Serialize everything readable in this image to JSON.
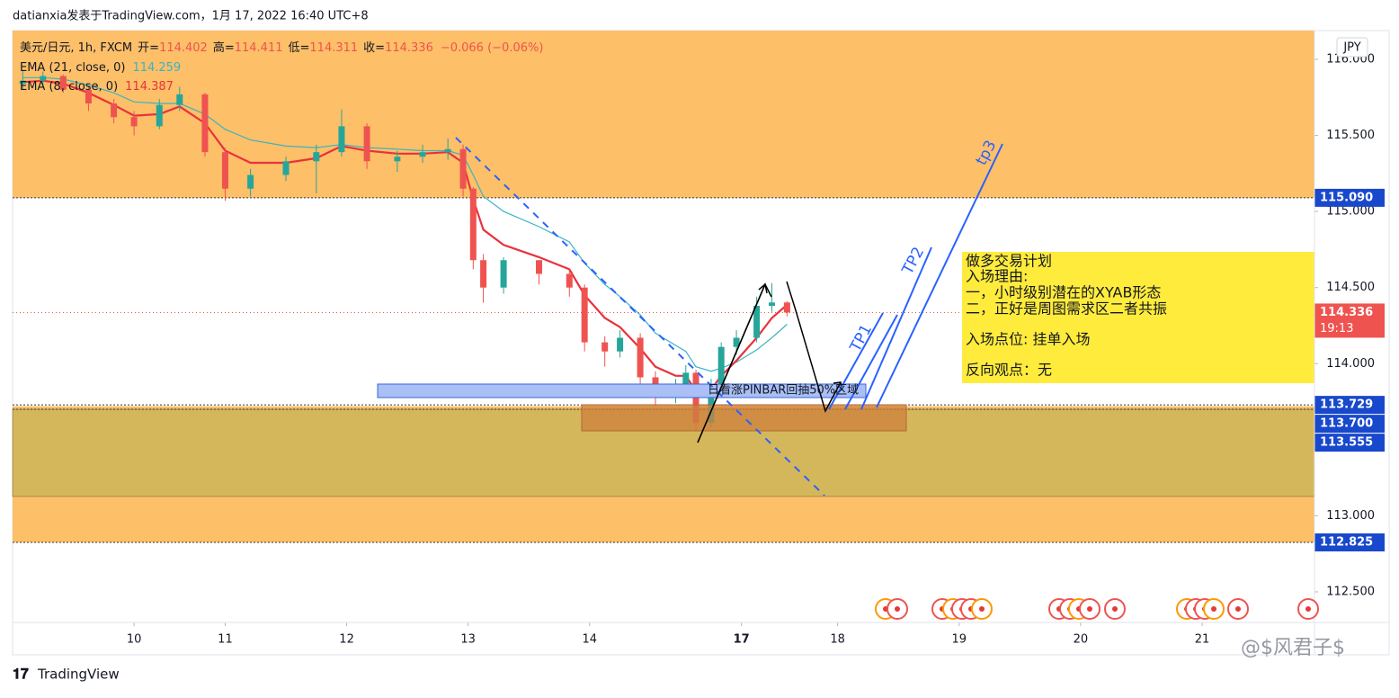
{
  "header": "datianxia发表于TradingView.com，1月 17, 2022 16:40 UTC+8",
  "chart_data": {
    "type": "candlestick",
    "symbol": "美元/日元, 1h, FXCM",
    "ohlc_labels": [
      "开=",
      "高=",
      "低=",
      "收="
    ],
    "change": "−0.066 (−0.06%)",
    "currency": "JPY",
    "countdown": "19:13",
    "xlim": [
      0,
      257.2
    ],
    "xticks": [
      {
        "value": 24,
        "label": "10"
      },
      {
        "value": 42,
        "label": "11"
      },
      {
        "value": 66,
        "label": "12"
      },
      {
        "value": 90,
        "label": "13"
      },
      {
        "value": 114,
        "label": "14"
      },
      {
        "value": 144,
        "label": "17"
      },
      {
        "value": 163,
        "label": "18"
      },
      {
        "value": 187,
        "label": "19"
      },
      {
        "value": 211,
        "label": "20"
      },
      {
        "value": 235,
        "label": "21"
      }
    ],
    "ylim": [
      112.299,
      116.189
    ],
    "yticks": [
      {
        "value": 116,
        "label": "116.000"
      },
      {
        "value": 115.5,
        "label": "115.500"
      },
      {
        "value": 115,
        "label": "115.000"
      },
      {
        "value": 114.5,
        "label": "114.500"
      },
      {
        "value": 114,
        "label": "114.000"
      },
      {
        "value": 113,
        "label": "113.000"
      },
      {
        "value": 112.5,
        "label": "112.500"
      }
    ],
    "grid": false,
    "up_color": "#26a69a",
    "down_color": "#ef5350",
    "candles": {
      "x": [
        2,
        6,
        10,
        15,
        20,
        24,
        29,
        33,
        38,
        42,
        47,
        54,
        60,
        65,
        70,
        76,
        81,
        86,
        89,
        91,
        93,
        97,
        104,
        110,
        113,
        117,
        120,
        124,
        127,
        131,
        133,
        135,
        138,
        140,
        143,
        147,
        150,
        153
      ],
      "open": [
        115.84,
        115.86,
        115.89,
        115.8,
        115.71,
        115.62,
        115.56,
        115.7,
        115.77,
        115.39,
        115.15,
        115.24,
        115.33,
        115.39,
        115.56,
        115.33,
        115.36,
        115.39,
        115.41,
        115.15,
        114.68,
        114.5,
        114.68,
        114.59,
        114.5,
        114.14,
        114.08,
        114.17,
        113.91,
        113.79,
        113.85,
        113.94,
        113.61,
        113.85,
        114.11,
        114.17,
        114.38,
        114.402
      ],
      "high": [
        115.93,
        115.92,
        115.9,
        115.82,
        115.74,
        115.66,
        115.74,
        115.82,
        115.78,
        115.42,
        115.28,
        115.36,
        115.44,
        115.67,
        115.58,
        115.4,
        115.44,
        115.48,
        115.44,
        115.16,
        114.72,
        114.7,
        114.68,
        114.62,
        114.52,
        114.18,
        114.22,
        114.2,
        113.95,
        113.9,
        113.99,
        113.96,
        113.9,
        114.14,
        114.22,
        114.44,
        114.53,
        114.411
      ],
      "low": [
        115.8,
        115.82,
        115.78,
        115.66,
        115.58,
        115.5,
        115.54,
        115.66,
        115.36,
        115.07,
        115.1,
        115.2,
        115.12,
        115.36,
        115.28,
        115.26,
        115.32,
        115.34,
        115.1,
        114.62,
        114.4,
        114.46,
        114.52,
        114.44,
        114.08,
        113.98,
        114.04,
        113.86,
        113.72,
        113.74,
        113.8,
        113.555,
        113.58,
        113.82,
        114.06,
        114.14,
        114.34,
        114.311
      ],
      "close": [
        115.86,
        115.89,
        115.8,
        115.71,
        115.62,
        115.56,
        115.7,
        115.77,
        115.39,
        115.15,
        115.24,
        115.33,
        115.39,
        115.56,
        115.33,
        115.36,
        115.39,
        115.41,
        115.15,
        114.68,
        114.5,
        114.68,
        114.59,
        114.5,
        114.14,
        114.08,
        114.17,
        113.91,
        113.79,
        113.85,
        113.94,
        113.61,
        113.85,
        114.11,
        114.17,
        114.38,
        114.402,
        114.336
      ]
    },
    "ema": [
      {
        "name": "EMA (21, close, 0)",
        "color": "#3bb3c3",
        "values": [
          115.88,
          115.88,
          115.87,
          115.83,
          115.78,
          115.72,
          115.71,
          115.71,
          115.64,
          115.54,
          115.47,
          115.43,
          115.42,
          115.44,
          115.42,
          115.41,
          115.4,
          115.4,
          115.37,
          115.24,
          115.1,
          115,
          114.9,
          114.8,
          114.66,
          114.52,
          114.44,
          114.32,
          114.2,
          114.12,
          114.08,
          113.98,
          113.95,
          113.97,
          114.01,
          114.09,
          114.17,
          114.259
        ]
      },
      {
        "name": "EMA (8, close, 0)",
        "color": "#e8323c",
        "values": [
          115.85,
          115.86,
          115.84,
          115.78,
          115.7,
          115.63,
          115.64,
          115.69,
          115.58,
          115.4,
          115.32,
          115.32,
          115.35,
          115.43,
          115.4,
          115.38,
          115.38,
          115.39,
          115.32,
          115.08,
          114.88,
          114.78,
          114.7,
          114.62,
          114.45,
          114.3,
          114.24,
          114.1,
          113.98,
          113.92,
          113.92,
          113.82,
          113.83,
          113.92,
          114.02,
          114.17,
          114.3,
          114.387
        ]
      }
    ],
    "zones": [
      {
        "from": 116.189,
        "to": 115.09,
        "color": "#fdbf68"
      },
      {
        "from": 113.72,
        "to": 112.825,
        "color": "#fdbf68"
      },
      {
        "from": 113.7,
        "to": 113.127,
        "color": "#d5b75b"
      }
    ],
    "price_labels": [
      {
        "value": 115.09,
        "label": "115.090"
      },
      {
        "value": 113.729,
        "label": "113.729"
      },
      {
        "value": 113.7,
        "label": "113.700"
      },
      {
        "value": 113.555,
        "label": "113.555"
      },
      {
        "value": 112.825,
        "label": "112.825"
      }
    ],
    "label_color": "#1848cc",
    "last_color": "#ef5350",
    "annotations": {
      "pinbar": "日看涨PINBAR回抽50%区域",
      "tp1": "TP1",
      "tp2": "TP2",
      "tp3": "tp3",
      "plan": [
        "做多交易计划",
        "入场理由:",
        "一，小时级别潜在的XYAB形态",
        "二，正好是周图需求区二者共振",
        "入场点位:  挂单入场",
        "反向观点：无"
      ]
    }
  },
  "footer": {
    "brand": "TradingView",
    "watermark": "@$风君子$"
  }
}
